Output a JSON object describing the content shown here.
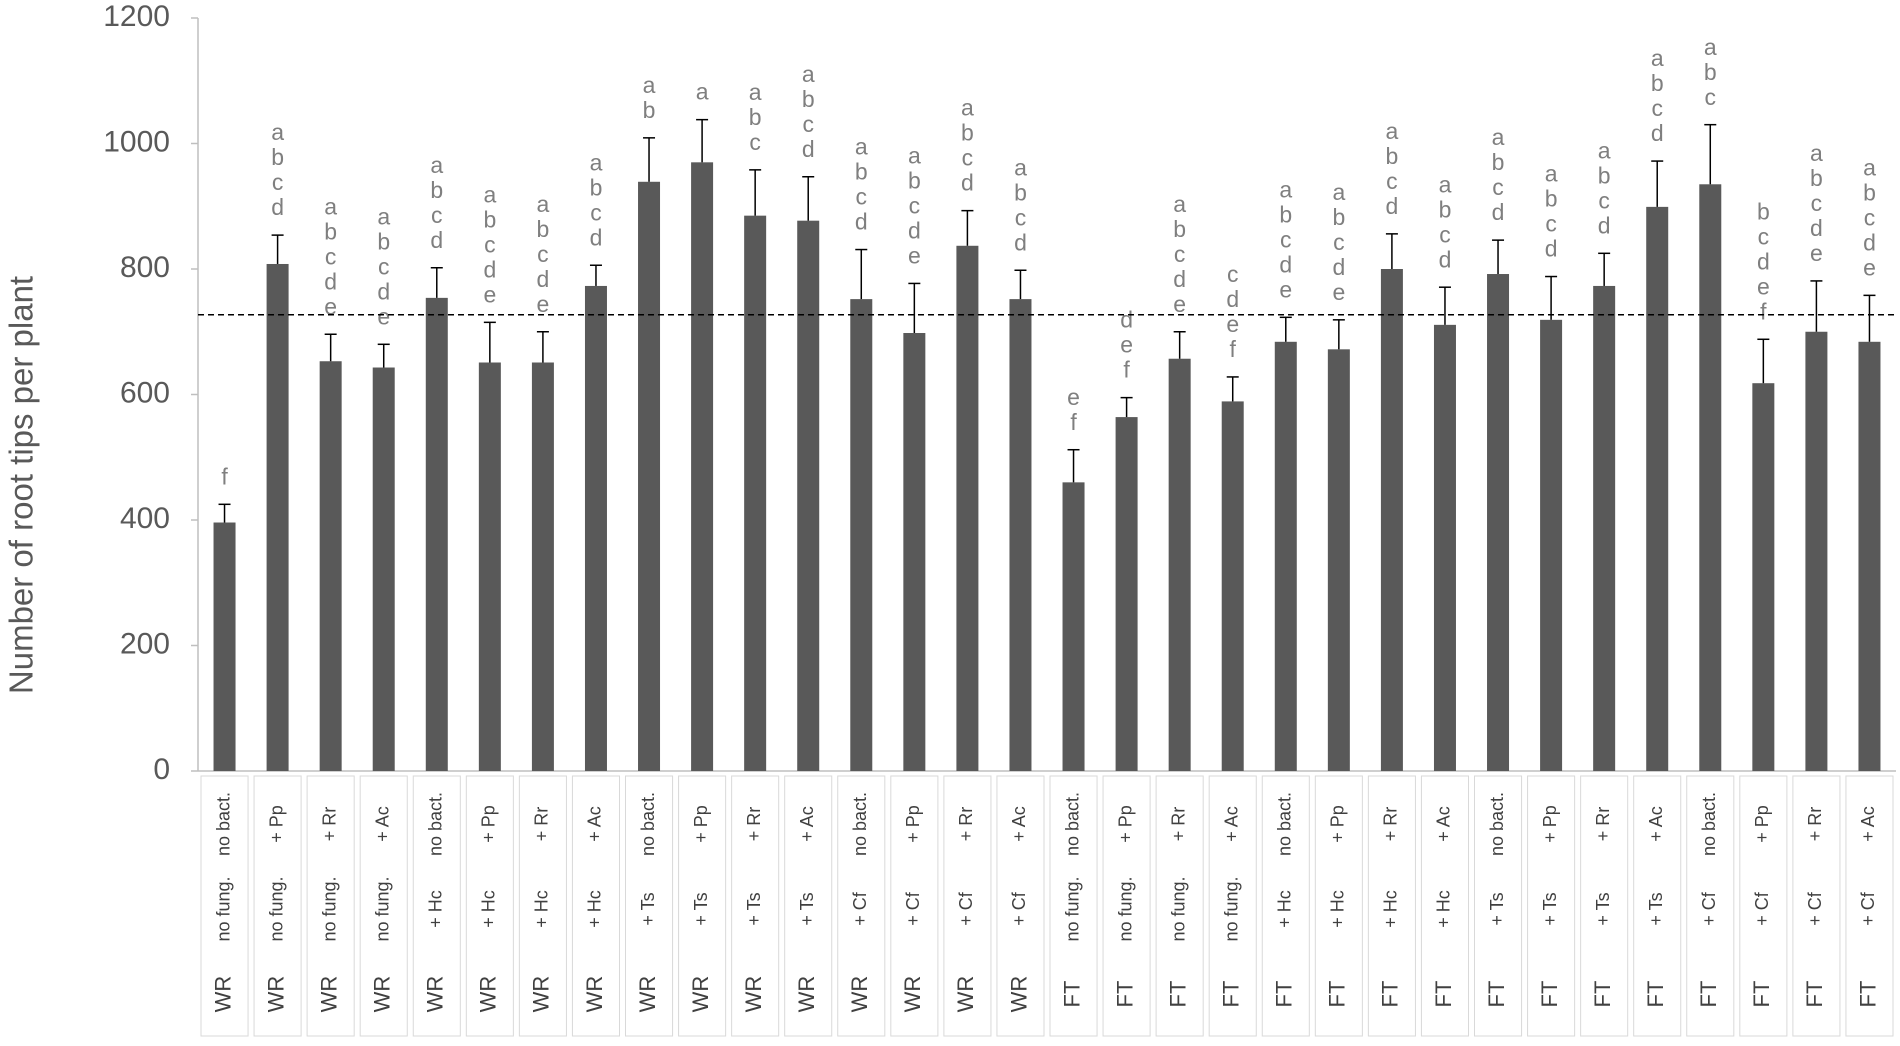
{
  "chart_data": {
    "type": "bar",
    "y_label": "Number of root tips per plant",
    "color": "#595959",
    "error_color": "#000000",
    "reference_line": 727,
    "ylim": [
      0,
      1200
    ],
    "yticks": [
      0,
      200,
      400,
      600,
      800,
      1000,
      1200
    ],
    "grid": false,
    "categories": [
      [
        "WR",
        "no fung.",
        "no bact."
      ],
      [
        "WR",
        "no fung.",
        "+ Pp"
      ],
      [
        "WR",
        "no fung.",
        "+ Rr"
      ],
      [
        "WR",
        "no fung.",
        "+ Ac"
      ],
      [
        "WR",
        "+ Hc",
        "no bact."
      ],
      [
        "WR",
        "+ Hc",
        "+ Pp"
      ],
      [
        "WR",
        "+ Hc",
        "+ Rr"
      ],
      [
        "WR",
        "+ Hc",
        "+ Ac"
      ],
      [
        "WR",
        "+ Ts",
        "no bact."
      ],
      [
        "WR",
        "+ Ts",
        "+ Pp"
      ],
      [
        "WR",
        "+ Ts",
        "+ Rr"
      ],
      [
        "WR",
        "+ Ts",
        "+ Ac"
      ],
      [
        "WR",
        "+ Cf",
        "no bact."
      ],
      [
        "WR",
        "+ Cf",
        "+ Pp"
      ],
      [
        "WR",
        "+ Cf",
        "+ Rr"
      ],
      [
        "WR",
        "+ Cf",
        "+ Ac"
      ],
      [
        "FT",
        "no fung.",
        "no bact."
      ],
      [
        "FT",
        "no fung.",
        "+ Pp"
      ],
      [
        "FT",
        "no fung.",
        "+ Rr"
      ],
      [
        "FT",
        "no fung.",
        "+ Ac"
      ],
      [
        "FT",
        "+ Hc",
        "no bact."
      ],
      [
        "FT",
        "+ Hc",
        "+ Pp"
      ],
      [
        "FT",
        "+ Hc",
        "+ Rr"
      ],
      [
        "FT",
        "+ Hc",
        "+ Ac"
      ],
      [
        "FT",
        "+ Ts",
        "no bact."
      ],
      [
        "FT",
        "+ Ts",
        "+ Pp"
      ],
      [
        "FT",
        "+ Ts",
        "+ Rr"
      ],
      [
        "FT",
        "+ Ts",
        "+ Ac"
      ],
      [
        "FT",
        "+ Cf",
        "no bact."
      ],
      [
        "FT",
        "+ Cf",
        "+ Pp"
      ],
      [
        "FT",
        "+ Cf",
        "+ Rr"
      ],
      [
        "FT",
        "+ Cf",
        "+ Ac"
      ]
    ],
    "values": [
      396,
      808,
      653,
      643,
      754,
      651,
      651,
      773,
      939,
      970,
      885,
      877,
      752,
      698,
      837,
      752,
      460,
      564,
      657,
      589,
      684,
      672,
      800,
      711,
      792,
      719,
      773,
      899,
      935,
      618,
      700,
      684
    ],
    "errors": [
      29,
      46,
      43,
      37,
      48,
      64,
      49,
      33,
      70,
      68,
      73,
      70,
      79,
      79,
      56,
      46,
      52,
      31,
      43,
      39,
      39,
      47,
      56,
      60,
      54,
      69,
      52,
      73,
      95,
      70,
      81,
      74
    ],
    "letters": [
      [
        "f"
      ],
      [
        "a",
        "b",
        "c",
        "d"
      ],
      [
        "a",
        "b",
        "c",
        "d",
        "e"
      ],
      [
        "a",
        "b",
        "c",
        "d",
        "e"
      ],
      [
        "a",
        "b",
        "c",
        "d"
      ],
      [
        "a",
        "b",
        "c",
        "d",
        "e"
      ],
      [
        "a",
        "b",
        "c",
        "d",
        "e"
      ],
      [
        "a",
        "b",
        "c",
        "d"
      ],
      [
        "a",
        "b"
      ],
      [
        "a"
      ],
      [
        "a",
        "b",
        "c"
      ],
      [
        "a",
        "b",
        "c",
        "d"
      ],
      [
        "a",
        "b",
        "c",
        "d"
      ],
      [
        "a",
        "b",
        "c",
        "d",
        "e"
      ],
      [
        "a",
        "b",
        "c",
        "d"
      ],
      [
        "a",
        "b",
        "c",
        "d"
      ],
      [
        "e",
        "f"
      ],
      [
        "d",
        "e",
        "f"
      ],
      [
        "a",
        "b",
        "c",
        "d",
        "e"
      ],
      [
        "c",
        "d",
        "e",
        "f"
      ],
      [
        "a",
        "b",
        "c",
        "d",
        "e"
      ],
      [
        "a",
        "b",
        "c",
        "d",
        "e"
      ],
      [
        "a",
        "b",
        "c",
        "d"
      ],
      [
        "a",
        "b",
        "c",
        "d"
      ],
      [
        "a",
        "b",
        "c",
        "d"
      ],
      [
        "a",
        "b",
        "c",
        "d"
      ],
      [
        "a",
        "b",
        "c",
        "d"
      ],
      [
        "a",
        "b",
        "c",
        "d"
      ],
      [
        "a",
        "b",
        "c"
      ],
      [
        "b",
        "c",
        "d",
        "e",
        "f"
      ],
      [
        "a",
        "b",
        "c",
        "d",
        "e"
      ],
      [
        "a",
        "b",
        "c",
        "d",
        "e"
      ]
    ]
  }
}
